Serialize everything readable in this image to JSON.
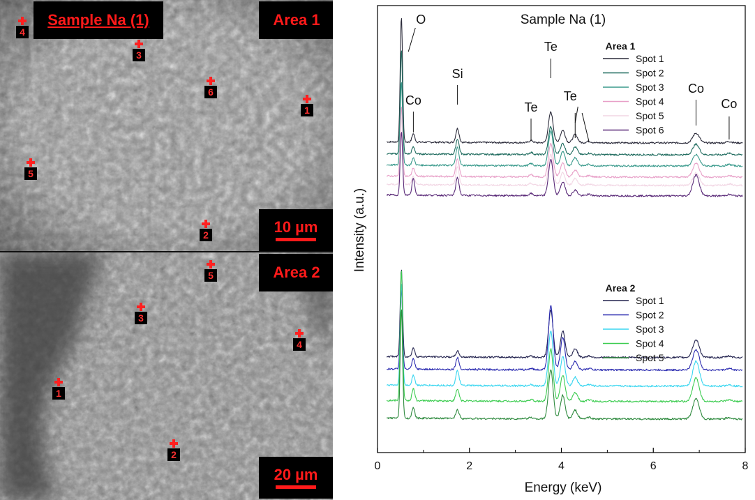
{
  "sem": {
    "title": "Sample Na (1)",
    "areas": [
      {
        "tag": "Area 1",
        "scale": "10 µm",
        "spots": [
          "1",
          "2",
          "3",
          "4",
          "5",
          "6"
        ]
      },
      {
        "tag": "Area 2",
        "scale": "20 µm",
        "spots": [
          "1",
          "2",
          "3",
          "4",
          "5"
        ]
      }
    ],
    "marker_color": "#ff2020"
  },
  "chart_data": {
    "type": "line",
    "title": "Sample Na (1)",
    "xlabel": "Energy (keV)",
    "ylabel": "Intensity (a.u.)",
    "xlim": [
      0,
      8
    ],
    "xticks": [
      "0",
      "2",
      "4",
      "6",
      "8"
    ],
    "y_ticks_shown": false,
    "grid": false,
    "peaks": [
      {
        "element": "O",
        "energy": 0.52
      },
      {
        "element": "Co",
        "energy": 0.78
      },
      {
        "element": "Si",
        "energy": 1.74
      },
      {
        "element": "Te",
        "energy": 3.34
      },
      {
        "element": "Te",
        "energy": 3.77
      },
      {
        "element": "Te",
        "energy": 4.03
      },
      {
        "element": "Te",
        "energy": 4.3
      },
      {
        "element": "Te",
        "energy": 4.6
      },
      {
        "element": "Co",
        "energy": 6.93
      },
      {
        "element": "Co",
        "energy": 7.65
      }
    ],
    "peak_labels": [
      {
        "text": "O",
        "energy": 0.52
      },
      {
        "text": "Co",
        "energy": 0.78
      },
      {
        "text": "Si",
        "energy": 1.74
      },
      {
        "text": "Te",
        "energy": 3.34
      },
      {
        "text": "Te",
        "energy": 3.77
      },
      {
        "text": "Te",
        "energy": 4.3
      },
      {
        "text": "Co",
        "energy": 6.93
      },
      {
        "text": "Co",
        "energy": 7.65
      }
    ],
    "groups": [
      {
        "legend_title": "Area 1",
        "series": [
          {
            "name": "Spot 1",
            "color": "#2b2b3a",
            "offset": 3.8,
            "peak_heights": [
              9.0,
              0.6,
              1.0,
              0.15,
              2.2,
              0.9,
              0.6,
              0.1,
              0.7,
              0.1
            ]
          },
          {
            "name": "Spot 2",
            "color": "#1f6b5e",
            "offset": 2.95,
            "peak_heights": [
              7.5,
              0.5,
              1.1,
              0.15,
              2.0,
              0.8,
              0.55,
              0.1,
              0.75,
              0.1
            ]
          },
          {
            "name": "Spot 3",
            "color": "#3a9a8c",
            "offset": 2.15,
            "peak_heights": [
              6.0,
              0.5,
              1.3,
              0.15,
              2.5,
              1.0,
              0.6,
              0.1,
              0.8,
              0.1
            ]
          },
          {
            "name": "Spot 4",
            "color": "#e8a0c8",
            "offset": 1.35,
            "peak_heights": [
              5.0,
              0.6,
              1.3,
              0.15,
              2.4,
              1.0,
              0.5,
              0.1,
              1.0,
              0.1
            ]
          },
          {
            "name": "Spot 5",
            "color": "#f2d6e4",
            "offset": 0.75,
            "peak_heights": [
              4.8,
              0.6,
              1.3,
              0.15,
              2.2,
              0.9,
              0.5,
              0.1,
              0.9,
              0.1
            ]
          },
          {
            "name": "Spot 6",
            "color": "#5a2a78",
            "offset": 0.0,
            "peak_heights": [
              4.6,
              1.2,
              1.3,
              0.15,
              2.6,
              1.0,
              0.4,
              0.1,
              1.5,
              0.1
            ]
          }
        ]
      },
      {
        "legend_title": "Area 2",
        "series": [
          {
            "name": "Spot 1",
            "color": "#23234f",
            "offset": 4.2,
            "peak_heights": [
              6.0,
              0.6,
              0.4,
              0.1,
              3.2,
              1.8,
              0.6,
              0.1,
              1.2,
              0.1
            ]
          },
          {
            "name": "Spot 2",
            "color": "#2b2bb0",
            "offset": 3.35,
            "peak_heights": [
              5.5,
              0.7,
              0.8,
              0.1,
              4.4,
              2.2,
              0.6,
              0.1,
              1.4,
              0.1
            ]
          },
          {
            "name": "Spot 3",
            "color": "#38d6f0",
            "offset": 2.25,
            "peak_heights": [
              7.0,
              0.7,
              1.0,
              0.1,
              3.8,
              2.0,
              0.6,
              0.1,
              1.7,
              0.1
            ]
          },
          {
            "name": "Spot 4",
            "color": "#3ccc50",
            "offset": 1.2,
            "peak_heights": [
              9.0,
              0.8,
              0.8,
              0.1,
              3.6,
              1.8,
              0.6,
              0.1,
              1.6,
              0.1
            ]
          },
          {
            "name": "Spot 5",
            "color": "#2e8a3e",
            "offset": 0.0,
            "peak_heights": [
              7.5,
              0.7,
              0.6,
              0.1,
              3.4,
              1.6,
              0.6,
              0.1,
              1.4,
              0.1
            ]
          }
        ]
      }
    ]
  }
}
